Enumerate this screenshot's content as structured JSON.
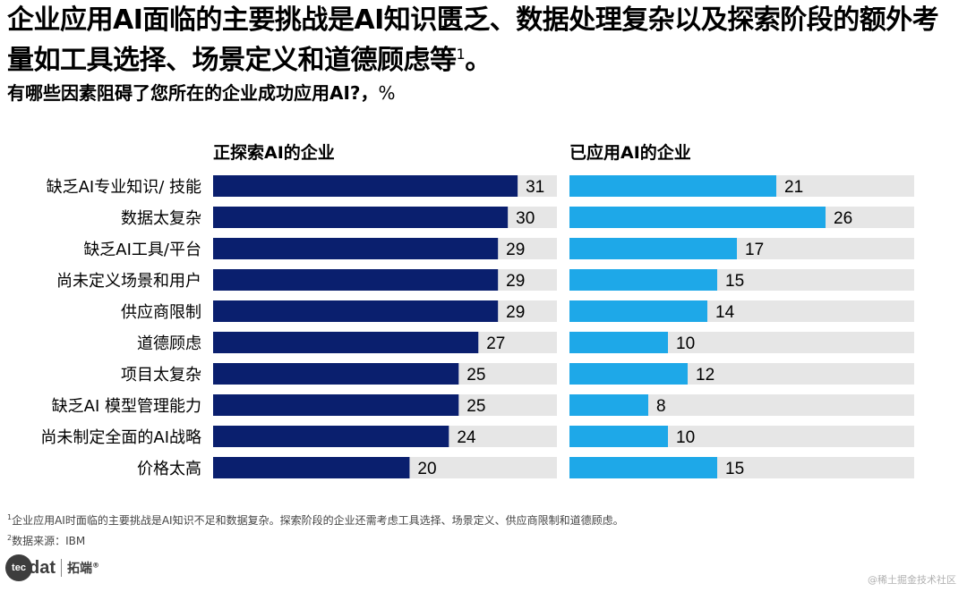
{
  "title": {
    "text": "企业应用AI面临的主要挑战是AI知识匮乏、数据处理复杂以及探索阶段的额外考量如工具选择、场景定义和道德顾虑等",
    "footnote_mark": "1",
    "end_punct": "。"
  },
  "question": {
    "text": "有哪些因素阻碍了您所在的企业成功应用AI?，",
    "unit": "%"
  },
  "chart_data": {
    "type": "bar",
    "orientation": "horizontal",
    "categories": [
      "缺乏AI专业知识/ 技能",
      "数据太复杂",
      "缺乏AI工具/平台",
      "尚未定义场景和用户",
      "供应商限制",
      "道德顾虑",
      "项目太复杂",
      "缺乏AI 模型管理能力",
      "尚未制定全面的AI战略",
      "价格太高"
    ],
    "series": [
      {
        "name": "正探索AI的企业",
        "values": [
          31,
          30,
          29,
          29,
          29,
          27,
          25,
          25,
          24,
          20
        ],
        "color": "#0a1f6e"
      },
      {
        "name": "已应用AI的企业",
        "values": [
          21,
          26,
          17,
          15,
          14,
          10,
          12,
          8,
          10,
          15
        ],
        "color": "#1ea8e8"
      }
    ],
    "xlim": [
      0,
      35
    ],
    "background_bar_color": "#e6e6e6"
  },
  "footnotes": {
    "note1_mark": "1",
    "note1": "企业应用AI时面临的主要挑战是AI知识不足和数据复杂。探索阶段的企业还需考虑工具选择、场景定义、供应商限制和道德顾虑。",
    "note2_mark": "2",
    "note2": "数据来源：IBM"
  },
  "logo": {
    "part1": "tec",
    "part2": "dat",
    "cn": "拓端",
    "reg": "®"
  },
  "watermark": "@稀土掘金技术社区"
}
